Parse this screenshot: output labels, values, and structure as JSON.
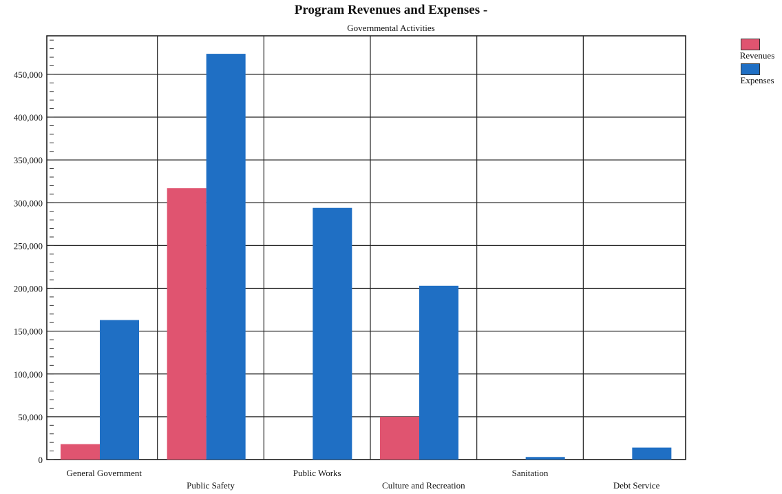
{
  "chart_data": {
    "type": "bar",
    "title": "Program Revenues and Expenses -",
    "subtitle": "Governmental Activities",
    "categories": [
      "General Government",
      "Public Safety",
      "Public Works",
      "Culture and Recreation",
      "Sanitation",
      "Debt Service"
    ],
    "series": [
      {
        "name": "Revenues",
        "color": "#e05470",
        "values": [
          18000,
          317000,
          0,
          50000,
          0,
          0
        ]
      },
      {
        "name": "Expenses",
        "color": "#1f6fc4",
        "values": [
          163000,
          474000,
          294000,
          203000,
          3000,
          14000
        ]
      }
    ],
    "yticks": [
      "0",
      "50,000",
      "100,000",
      "150,000",
      "200,000",
      "250,000",
      "300,000",
      "350,000",
      "400,000",
      "450,000"
    ],
    "ylim": [
      0,
      495000
    ],
    "grid": true,
    "legend_position": "top-right"
  }
}
